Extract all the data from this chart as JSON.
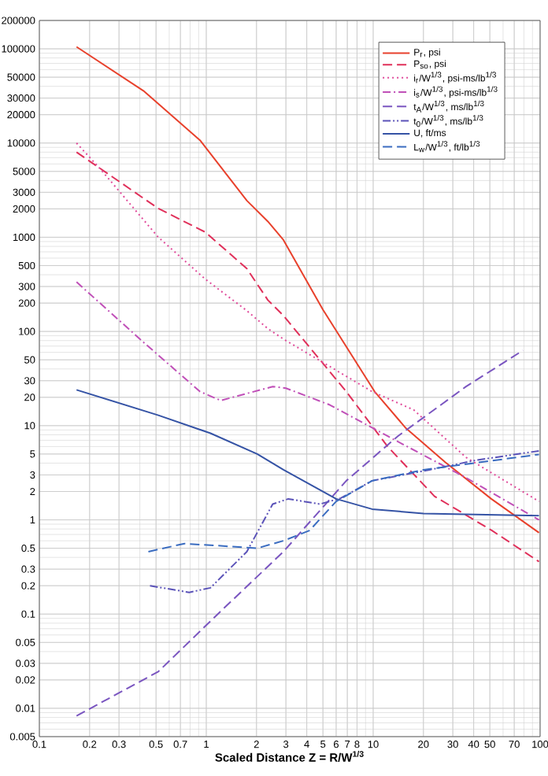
{
  "chart_data": {
    "type": "line",
    "xlabel": "Scaled Distance Z = R/W$^{1/3}$",
    "log": "xy",
    "grid": true,
    "legend": "top right",
    "xlim": [
      0.1,
      100
    ],
    "ylim": [
      0.005,
      200000
    ],
    "xticks": [
      0.1,
      0.2,
      0.3,
      0.5,
      0.7,
      1,
      2,
      3,
      4,
      5,
      6,
      7,
      8,
      10,
      20,
      30,
      40,
      50,
      70,
      100
    ],
    "yticks": [
      0.005,
      0.01,
      0.02,
      0.03,
      0.05,
      0.1,
      0.2,
      0.3,
      0.5,
      1,
      2,
      3,
      5,
      10,
      20,
      30,
      50,
      100,
      200,
      300,
      500,
      1000,
      2000,
      3000,
      5000,
      10000,
      20000,
      30000,
      50000,
      100000,
      200000
    ],
    "series": [
      {
        "name": "P$_{r}$, psi",
        "color": "#e8412c",
        "line_style": "solid",
        "x": [
          0.167,
          0.42,
          0.917,
          1.75,
          2.34,
          2.9,
          5,
          10.2,
          15.7,
          27,
          51,
          98.5
        ],
        "values": [
          105000,
          35900,
          10700,
          2450,
          1470,
          935,
          170,
          23,
          9.4,
          4.1,
          1.67,
          0.73
        ]
      },
      {
        "name": "P$_{so}$, psi",
        "color": "#e0305a",
        "line_style": "dashed",
        "x": [
          0.167,
          0.516,
          0.985,
          1.75,
          2.34,
          2.9,
          6.9,
          12.2,
          23.3,
          51.5,
          98.5
        ],
        "values": [
          8000,
          2020,
          1135,
          465,
          215,
          147,
          23,
          6,
          1.78,
          0.77,
          0.36
        ]
      },
      {
        "name": "i$_{r}$/W$^{1/3}$, psi-ms/lb$^{1/3}$",
        "color": "#e04a9a",
        "line_style": "dotted",
        "x": [
          0.167,
          0.233,
          0.516,
          0.985,
          1.75,
          2.34,
          2.9,
          9.85,
          17.5,
          36,
          98.5
        ],
        "values": [
          10000,
          5250,
          1000,
          360,
          166,
          107,
          83,
          23,
          14.7,
          4.6,
          1.57
        ]
      },
      {
        "name": "i$_{s}$/W$^{1/3}$, psi-ms/lb$^{1/3}$",
        "color": "#c050b8",
        "line_style": "dashdot",
        "x": [
          0.167,
          0.42,
          0.917,
          1.22,
          2.5,
          3,
          5.5,
          14,
          36,
          98.5
        ],
        "values": [
          335,
          77,
          23,
          18.5,
          26,
          25,
          16.6,
          6.8,
          2.8,
          1.0
        ]
      },
      {
        "name": "t$_{A}$/W$^{1/3}$, ms/lb$^{1/3}$",
        "color": "#7a55c0",
        "line_style": "dashed",
        "x": [
          0.167,
          0.516,
          1.22,
          2.9,
          6.9,
          14,
          36,
          79
        ],
        "values": [
          0.0083,
          0.0245,
          0.107,
          0.46,
          2.6,
          7.7,
          26,
          63
        ]
      },
      {
        "name": "t$_{0}$/W$^{1/3}$, ms/lb$^{1/3}$",
        "color": "#5a52b8",
        "line_style": "dashdotdot",
        "x": [
          0.46,
          0.79,
          1.06,
          1.75,
          2.5,
          3.1,
          4.8,
          6.4,
          9.85,
          21.8,
          41.5,
          98.5
        ],
        "values": [
          0.2,
          0.17,
          0.19,
          0.46,
          1.47,
          1.67,
          1.47,
          1.7,
          2.6,
          3.4,
          4.3,
          5.4
        ]
      },
      {
        "name": "U, ft/ms",
        "color": "#3553a5",
        "line_style": "solid",
        "x": [
          0.167,
          0.516,
          1.06,
          2.02,
          2.9,
          6,
          9.85,
          20,
          98.5
        ],
        "values": [
          24,
          12.9,
          8.3,
          5,
          3.4,
          1.67,
          1.3,
          1.17,
          1.11
        ]
      },
      {
        "name": "L$_{w}$/W$^{1/3}$, ft/lb$^{1/3}$",
        "color": "#3a6cc0",
        "line_style": "dashed",
        "x": [
          0.45,
          0.74,
          1.22,
          2.02,
          2.9,
          4.15,
          6,
          9.85,
          20,
          98.5
        ],
        "values": [
          0.46,
          0.56,
          0.53,
          0.5,
          0.6,
          0.77,
          1.57,
          2.6,
          3.4,
          4.95
        ]
      }
    ]
  }
}
